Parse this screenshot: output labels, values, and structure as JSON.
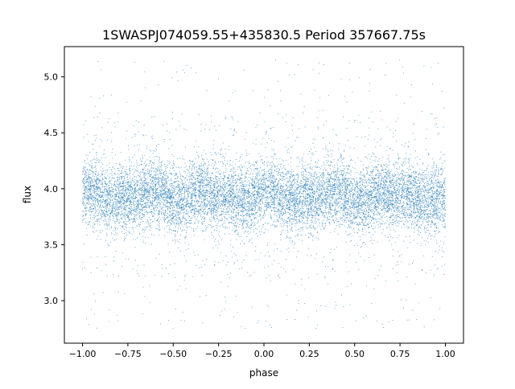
{
  "chart_data": {
    "type": "scatter",
    "title": "1SWASPJ074059.55+435830.5 Period 357667.75s",
    "xlabel": "phase",
    "ylabel": "flux",
    "xlim": [
      -1.1,
      1.1
    ],
    "ylim": [
      2.62,
      5.27
    ],
    "x_ticks": [
      -1.0,
      -0.75,
      -0.5,
      -0.25,
      0.0,
      0.25,
      0.5,
      0.75,
      1.0
    ],
    "x_tick_labels": [
      "−1.00",
      "−0.75",
      "−0.50",
      "−0.25",
      "0.00",
      "0.25",
      "0.50",
      "0.75",
      "1.00"
    ],
    "y_ticks": [
      3.0,
      3.5,
      4.0,
      4.5,
      5.0
    ],
    "y_tick_labels": [
      "3.0",
      "3.5",
      "4.0",
      "4.5",
      "5.0"
    ],
    "grid": false,
    "legend": "none",
    "series": [
      {
        "color": "#1f77b4",
        "marker": "point",
        "x_range": [
          -1.0,
          1.0
        ],
        "y_range": [
          2.75,
          5.15
        ],
        "mean": 3.93,
        "core_band": [
          3.6,
          4.25
        ],
        "scatter_density": "high",
        "outlier_mix": "sparse points above and below core band",
        "approx_points": 52000
      }
    ]
  }
}
